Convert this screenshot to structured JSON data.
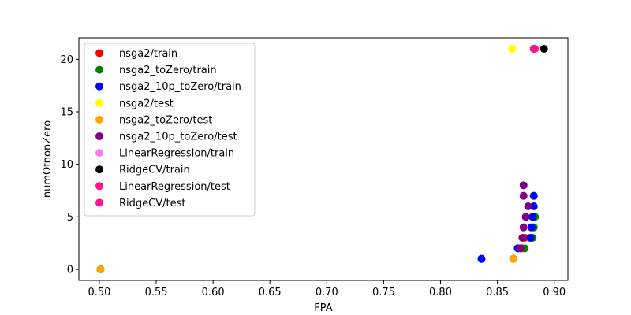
{
  "chart_data": {
    "type": "scatter",
    "xlabel": "FPA",
    "ylabel": "numOfnonZero",
    "xlim": [
      0.482,
      0.912
    ],
    "ylim": [
      -1.05,
      22.05
    ],
    "xticks": [
      0.5,
      0.55,
      0.6,
      0.65,
      0.7,
      0.75,
      0.8,
      0.85,
      0.9
    ],
    "xtick_labels": [
      "0.50",
      "0.55",
      "0.60",
      "0.65",
      "0.70",
      "0.75",
      "0.80",
      "0.85",
      "0.90"
    ],
    "yticks": [
      0,
      5,
      10,
      15,
      20
    ],
    "ytick_labels": [
      "0",
      "5",
      "10",
      "15",
      "20"
    ],
    "grid": false,
    "legend_position": "top-left",
    "series": [
      {
        "name": "nsga2/train",
        "color": "#ff0000",
        "points": [
          [
            0.501,
            0
          ],
          [
            0.864,
            1
          ],
          [
            0.872,
            2
          ],
          [
            0.874,
            3
          ]
        ]
      },
      {
        "name": "nsga2_toZero/train",
        "color": "#008000",
        "points": [
          [
            0.501,
            0
          ],
          [
            0.864,
            1
          ],
          [
            0.874,
            2
          ],
          [
            0.881,
            3
          ],
          [
            0.882,
            4
          ],
          [
            0.883,
            5
          ],
          [
            0.836,
            1
          ],
          [
            0.868,
            2
          ]
        ]
      },
      {
        "name": "nsga2_10p_toZero/train",
        "color": "#0000ff",
        "points": [
          [
            0.836,
            1
          ],
          [
            0.868,
            2
          ],
          [
            0.879,
            3
          ],
          [
            0.88,
            4
          ],
          [
            0.881,
            5
          ],
          [
            0.882,
            6
          ],
          [
            0.882,
            7
          ]
        ]
      },
      {
        "name": "nsga2/test",
        "color": "#ffff00",
        "points": [
          [
            0.863,
            21
          ]
        ]
      },
      {
        "name": "nsga2_toZero/test",
        "color": "#ffa500",
        "points": [
          [
            0.501,
            0
          ],
          [
            0.864,
            1
          ]
        ]
      },
      {
        "name": "nsga2_10p_toZero/test",
        "color": "#800080",
        "points": [
          [
            0.87,
            2
          ],
          [
            0.872,
            3
          ],
          [
            0.873,
            4
          ],
          [
            0.875,
            5
          ],
          [
            0.877,
            6
          ],
          [
            0.873,
            7
          ],
          [
            0.873,
            8
          ]
        ]
      },
      {
        "name": "LinearRegression/train",
        "color": "#ee82ee",
        "points": [
          [
            0.882,
            21
          ]
        ]
      },
      {
        "name": "RidgeCV/train",
        "color": "#000000",
        "points": [
          [
            0.891,
            21
          ]
        ]
      },
      {
        "name": "LinearRegression/test",
        "color": "#ff1493",
        "points": [
          [
            0.882,
            21
          ]
        ]
      },
      {
        "name": "RidgeCV/test",
        "color": "#ff1493",
        "points": [
          [
            0.883,
            21
          ]
        ]
      }
    ]
  }
}
